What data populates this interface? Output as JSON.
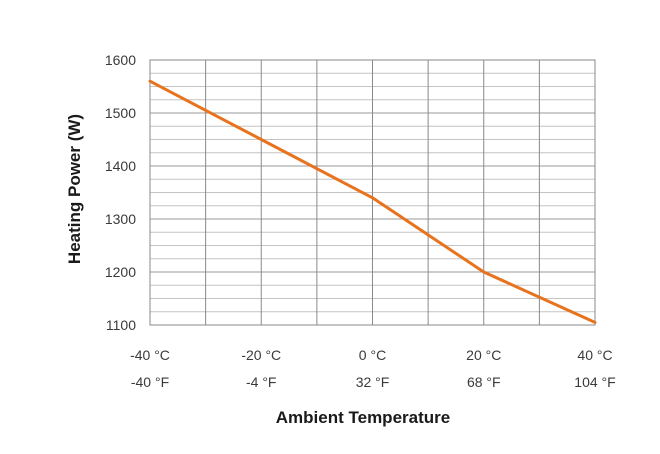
{
  "chart_data": {
    "type": "line",
    "title": "",
    "xlabel": "Ambient Temperature",
    "ylabel": "Heating Power (W)",
    "x_ticks": [
      {
        "value": -40,
        "celsius": "-40 °C",
        "fahrenheit": "-40 °F"
      },
      {
        "value": -20,
        "celsius": "-20 °C",
        "fahrenheit": "-4 °F"
      },
      {
        "value": 0,
        "celsius": "0 °C",
        "fahrenheit": "32 °F"
      },
      {
        "value": 20,
        "celsius": "20 °C",
        "fahrenheit": "68 °F"
      },
      {
        "value": 40,
        "celsius": "40 °C",
        "fahrenheit": "104 °F"
      }
    ],
    "y_ticks": [
      "1100",
      "1200",
      "1300",
      "1400",
      "1500",
      "1600"
    ],
    "xlim": [
      -40,
      40
    ],
    "ylim": [
      1100,
      1600
    ],
    "grid": true,
    "series": [
      {
        "color": "#e8731e",
        "x": [
          -40,
          -20,
          0,
          20,
          40
        ],
        "y": [
          1560,
          1450,
          1340,
          1200,
          1105
        ]
      }
    ]
  }
}
